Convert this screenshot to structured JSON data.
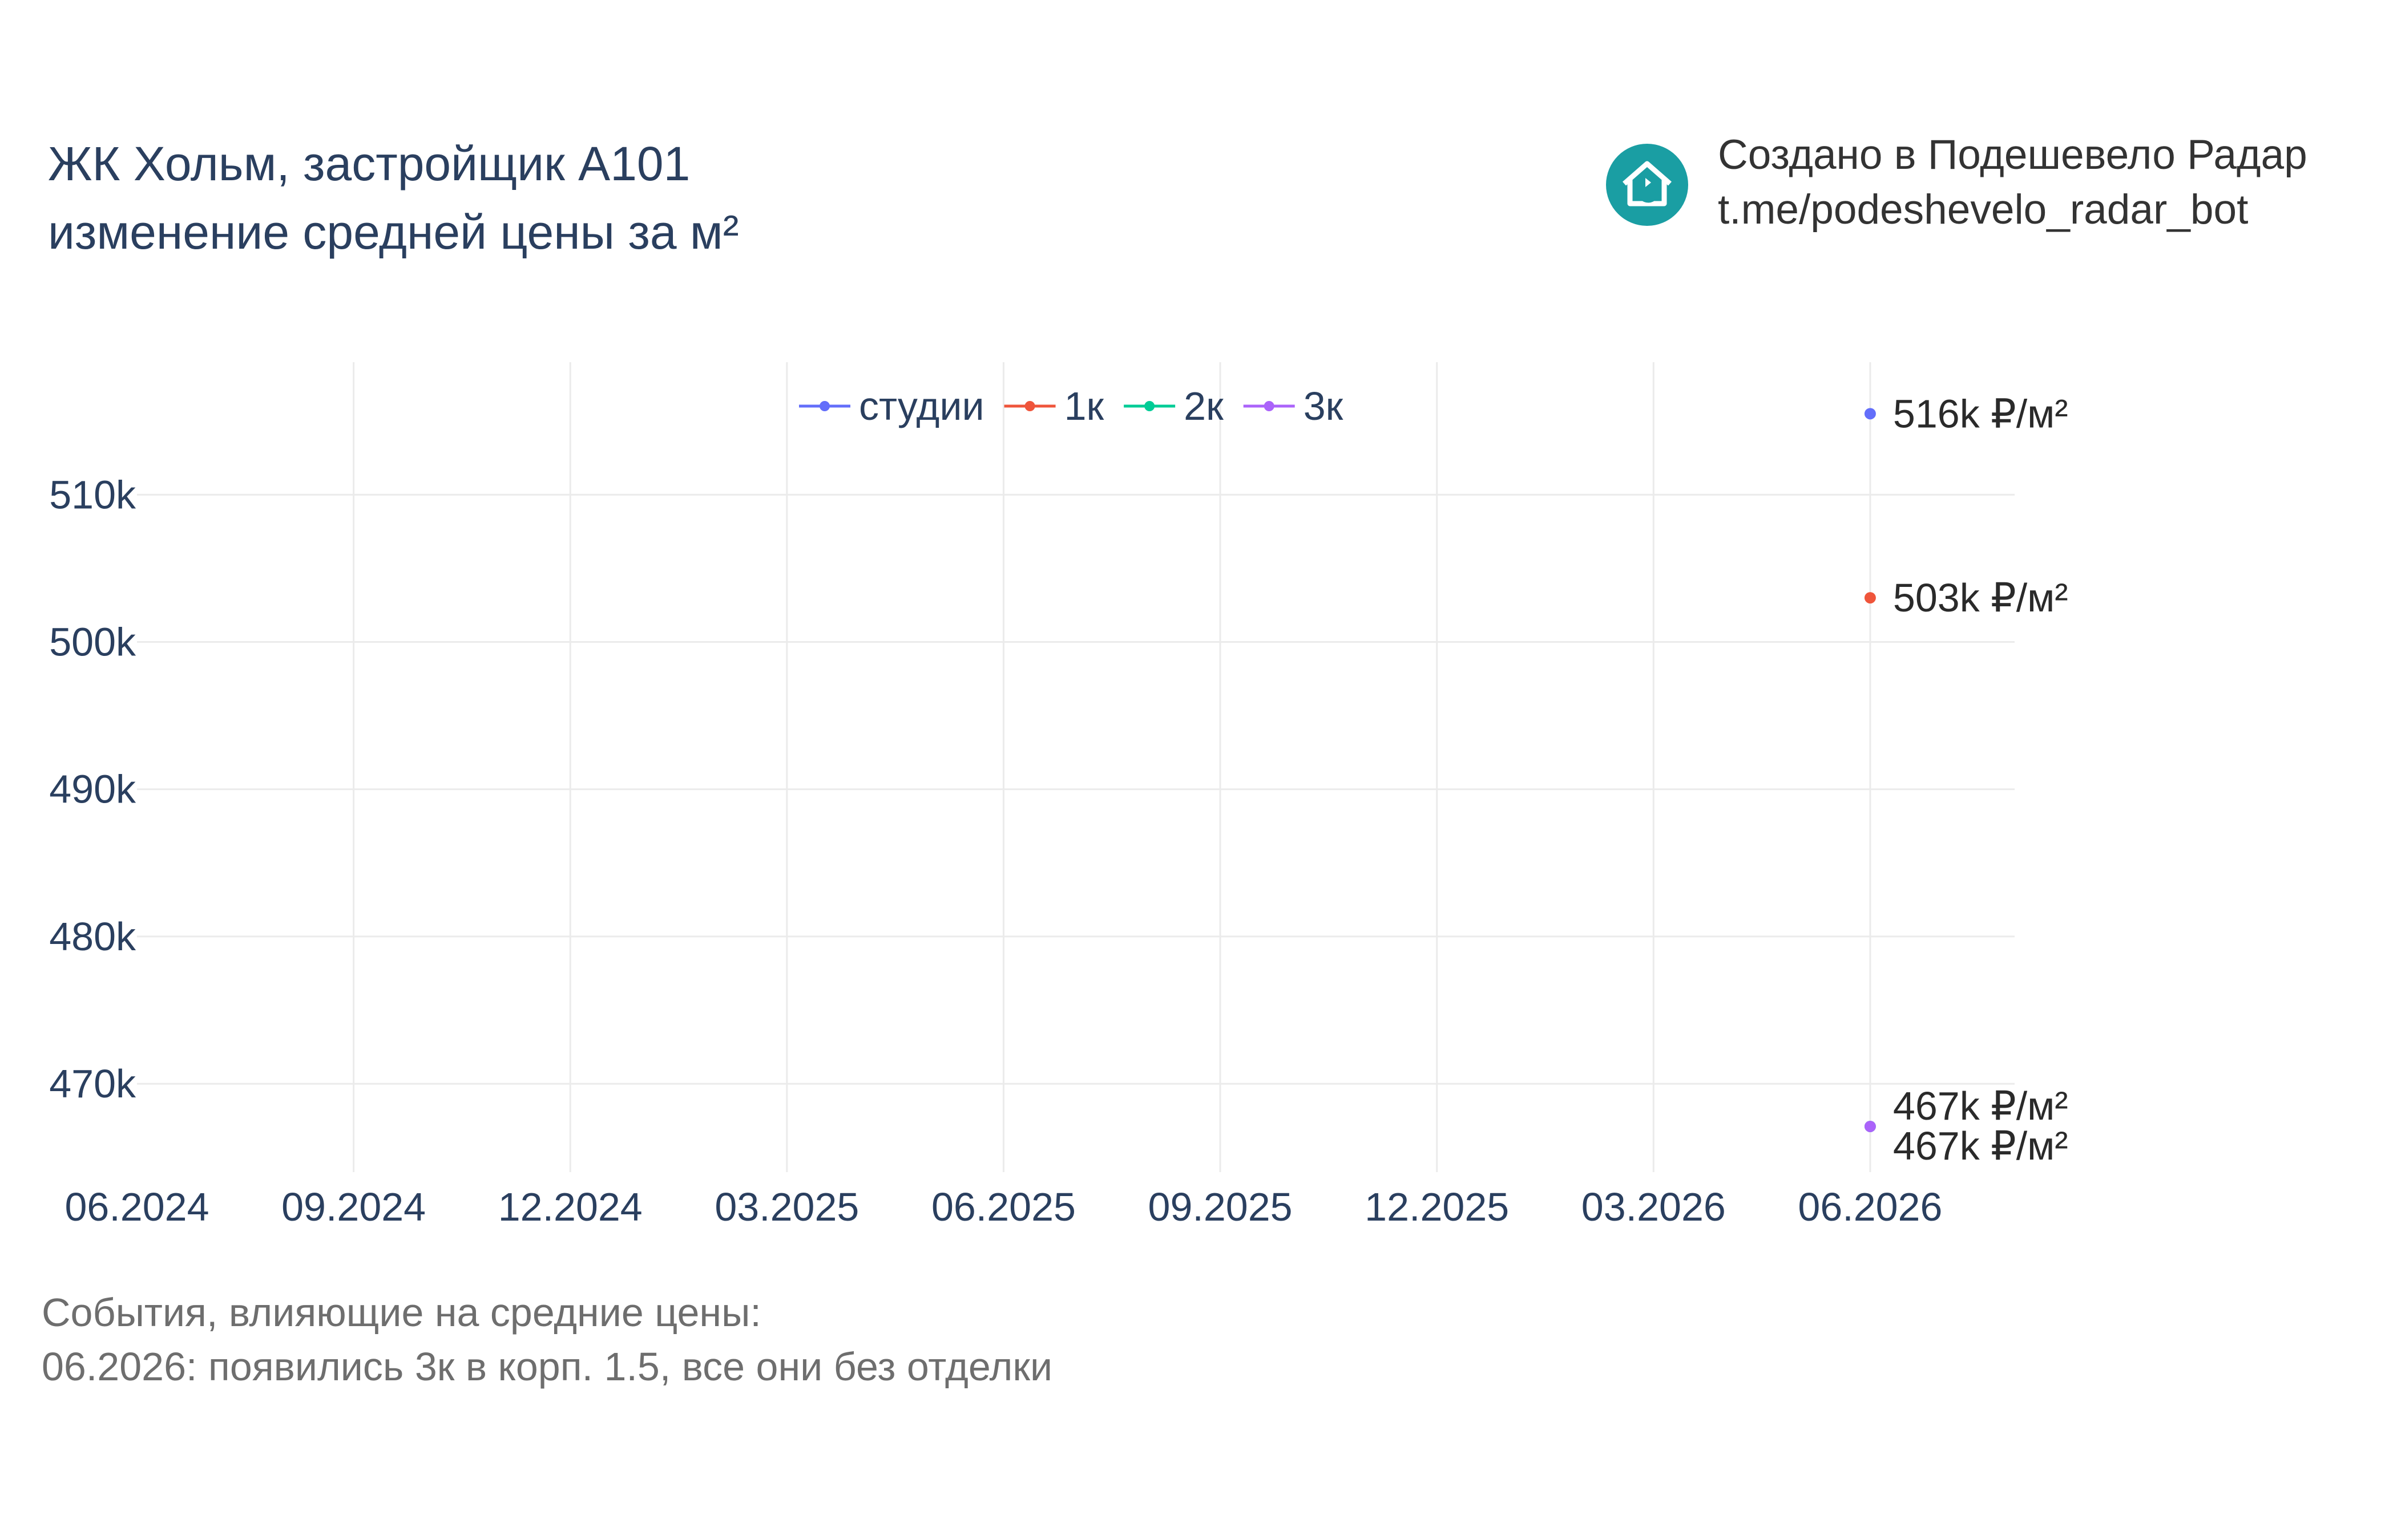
{
  "title": {
    "line1": "ЖК Хольм, застройщик А101",
    "line2": "изменение средней цены за м²"
  },
  "branding": {
    "logo_icon": "house-refresh-icon",
    "logo_color": "#1a9ea3",
    "line1": "Создано в Подешевело Радар",
    "line2": "t.me/podeshevelo_radar_bot"
  },
  "chart_data": {
    "type": "line",
    "x_ticks": [
      "06.2024",
      "09.2024",
      "12.2024",
      "03.2025",
      "06.2025",
      "09.2025",
      "12.2025",
      "03.2026",
      "06.2026"
    ],
    "y_ticks": [
      "470k",
      "480k",
      "490k",
      "500k",
      "510k"
    ],
    "y_tick_values": [
      470000,
      480000,
      490000,
      500000,
      510000
    ],
    "xlim": [
      "06.2024",
      "08.2026"
    ],
    "ylim": [
      464000,
      519000
    ],
    "grid": true,
    "legend_position": "top-center",
    "series": [
      {
        "name": "студии",
        "color": "#636efa",
        "points": [
          {
            "x": "06.2026",
            "y": 515500
          }
        ],
        "label": "516k ₽/м²"
      },
      {
        "name": "1к",
        "color": "#ef553b",
        "points": [
          {
            "x": "06.2026",
            "y": 503000
          }
        ],
        "label": "503k ₽/м²"
      },
      {
        "name": "2к",
        "color": "#00cc96",
        "points": [
          {
            "x": "06.2026",
            "y": 467100
          }
        ],
        "label": "467k ₽/м²"
      },
      {
        "name": "3к",
        "color": "#ab63fa",
        "points": [
          {
            "x": "06.2026",
            "y": 467100
          }
        ],
        "label": "467k ₽/м²"
      }
    ]
  },
  "footer": {
    "line1": "События, влияющие на средние цены:",
    "line2": "06.2026: появились 3к в корп. 1.5, все они без отделки"
  }
}
